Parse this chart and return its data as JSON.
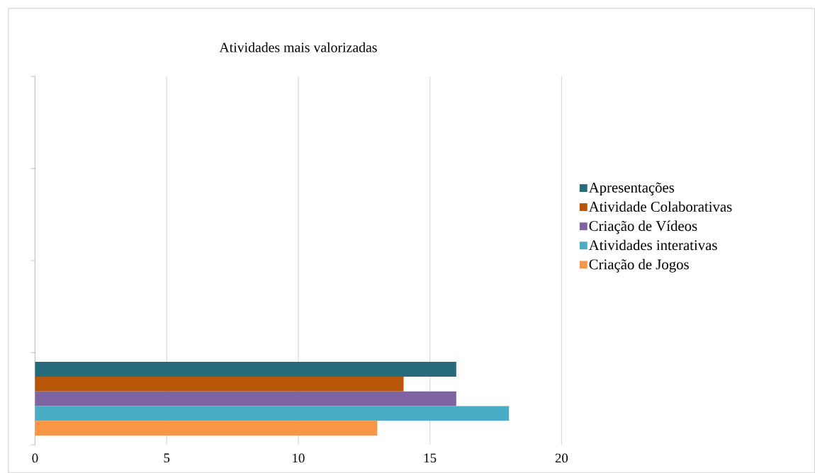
{
  "chart_data": {
    "type": "bar",
    "orientation": "horizontal",
    "title": "Atividades mais valorizadas",
    "categories": [
      null,
      null,
      null,
      null
    ],
    "series": [
      {
        "name": "Apresentações",
        "color": "#276a7c",
        "values": [
          null,
          null,
          null,
          16
        ]
      },
      {
        "name": "Atividade Colaborativas",
        "color": "#b95509",
        "values": [
          null,
          null,
          null,
          14
        ]
      },
      {
        "name": "Criação de Vídeos",
        "color": "#8064a2",
        "values": [
          null,
          null,
          null,
          16
        ]
      },
      {
        "name": "Atividades interativas",
        "color": "#4bacc6",
        "values": [
          null,
          null,
          null,
          18
        ]
      },
      {
        "name": "Criação de Jogos",
        "color": "#f79646",
        "values": [
          null,
          null,
          null,
          13
        ]
      }
    ],
    "xlim": [
      0,
      20
    ],
    "xticks": [
      0,
      5,
      10,
      15,
      20
    ],
    "grid": "x",
    "legend": "right"
  }
}
